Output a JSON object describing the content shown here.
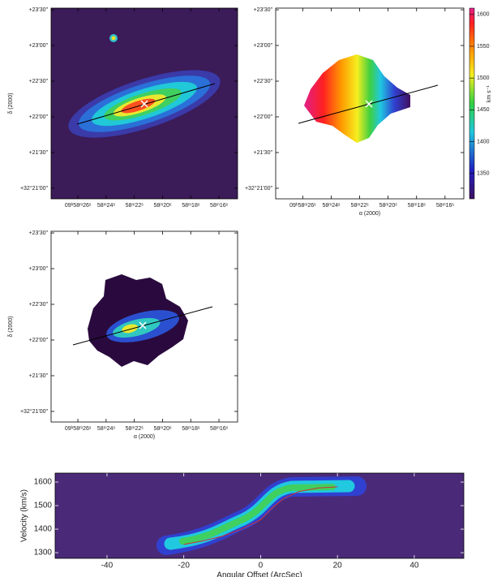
{
  "chart_data": [
    {
      "type": "image",
      "ylabel": "δ (2000)",
      "xlim": [
        27.9,
        14.68
      ],
      "ylim": [
        -8.9,
        151.4
      ],
      "xticks": [
        {
          "value": 26,
          "label": "09ʰ58ᵐ26ˢ"
        },
        {
          "value": 24,
          "label": "58ᵐ24ˢ"
        },
        {
          "value": 22,
          "label": "58ᵐ22ˢ"
        },
        {
          "value": 20,
          "label": "58ᵐ20ˢ"
        },
        {
          "value": 18,
          "label": "58ᵐ18ˢ"
        },
        {
          "value": 16,
          "label": "58ᵐ16ˢ"
        }
      ],
      "yticks": [
        {
          "value": 0,
          "label": "+32°21′00″"
        },
        {
          "value": 30,
          "label": "+21′30″"
        },
        {
          "value": 60,
          "label": "+22′00″"
        },
        {
          "value": 90,
          "label": "+22′30″"
        },
        {
          "value": 120,
          "label": "+23′00″"
        },
        {
          "value": 150,
          "label": "+23′30″"
        }
      ]
    },
    {
      "type": "image",
      "xlabel": "α (2000)",
      "xlim": [
        27.9,
        14.68
      ],
      "ylim": [
        -8.9,
        151.4
      ],
      "xticks": [
        {
          "value": 26,
          "label": "09ʰ58ᵐ26ˢ"
        },
        {
          "value": 24,
          "label": "58ᵐ24ˢ"
        },
        {
          "value": 22,
          "label": "58ᵐ22ˢ"
        },
        {
          "value": 20,
          "label": "58ᵐ20ˢ"
        },
        {
          "value": 18,
          "label": "58ᵐ18ˢ"
        },
        {
          "value": 16,
          "label": "58ᵐ16ˢ"
        }
      ],
      "yticks": [
        {
          "value": 0,
          "label": "+32°21′00″"
        },
        {
          "value": 30,
          "label": "+21′30″"
        },
        {
          "value": 60,
          "label": "+22′00″"
        },
        {
          "value": 90,
          "label": "+22′30″"
        },
        {
          "value": 120,
          "label": "+23′00″"
        },
        {
          "value": 150,
          "label": "+23′30″"
        }
      ],
      "colorbar_label": "km s⁻¹",
      "clim": [
        1310,
        1610
      ],
      "cticks": [
        1350,
        1400,
        1450,
        1500,
        1550,
        1600
      ]
    },
    {
      "type": "image",
      "ylabel": "δ (2000)",
      "xlabel": "α (2000)",
      "xlim": [
        27.9,
        14.68
      ],
      "ylim": [
        -8.9,
        151.4
      ],
      "xticks": [
        {
          "value": 26,
          "label": "09ʰ58ᵐ26ˢ"
        },
        {
          "value": 24,
          "label": "58ᵐ24ˢ"
        },
        {
          "value": 22,
          "label": "58ᵐ22ˢ"
        },
        {
          "value": 20,
          "label": "58ᵐ20ˢ"
        },
        {
          "value": 18,
          "label": "58ᵐ18ˢ"
        },
        {
          "value": 16,
          "label": "58ᵐ16ˢ"
        }
      ],
      "yticks": [
        {
          "value": 0,
          "label": "+32°21′00″"
        },
        {
          "value": 30,
          "label": "+21′30″"
        },
        {
          "value": 60,
          "label": "+22′00″"
        },
        {
          "value": 90,
          "label": "+22′30″"
        },
        {
          "value": 120,
          "label": "+23′00″"
        },
        {
          "value": 150,
          "label": "+23′30″"
        }
      ]
    },
    {
      "type": "pv",
      "xlabel": "Angular Offset (ArcSec)",
      "ylabel": "Velocity (km/s)",
      "xlim": [
        -53.5,
        52.9
      ],
      "ylim": [
        1276,
        1638
      ],
      "xticks": [
        -40,
        -20,
        0,
        20,
        40
      ],
      "yticks": [
        1300,
        1400,
        1500,
        1600
      ],
      "series": [
        {
          "color": "#d03030",
          "x": [
            -20,
            -15,
            -10,
            -5,
            0,
            3,
            6,
            10,
            15,
            20
          ],
          "values": [
            1335,
            1350,
            1370,
            1400,
            1440,
            1490,
            1530,
            1560,
            1575,
            1580
          ]
        }
      ]
    }
  ]
}
